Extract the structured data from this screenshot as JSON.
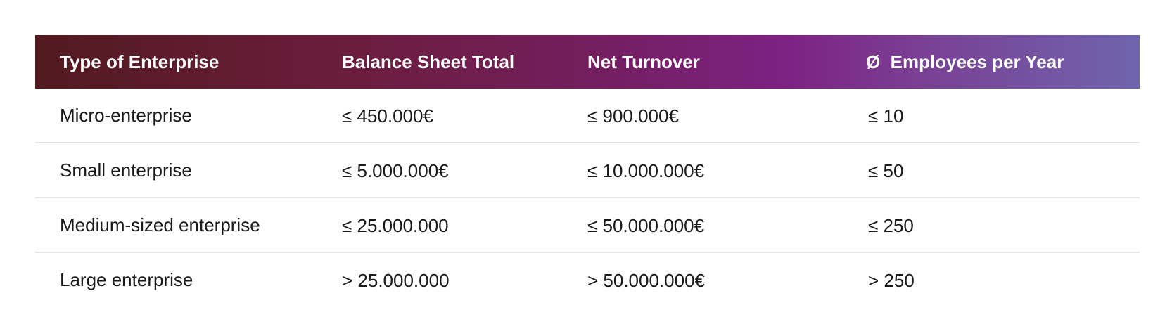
{
  "table": {
    "headers": [
      "Type of Enterprise",
      "Balance Sheet Total",
      "Net Turnover",
      "Ø  Employees per Year"
    ],
    "rows": [
      [
        "Micro-enterprise",
        "≤ 450.000€",
        "≤ 900.000€",
        "≤ 10"
      ],
      [
        "Small enterprise",
        "≤ 5.000.000€",
        "≤ 10.000.000€",
        "≤ 50"
      ],
      [
        "Medium-sized enterprise",
        "≤ 25.000.000",
        "≤ 50.000.000€",
        "≤ 250"
      ],
      [
        "Large enterprise",
        "> 25.000.000",
        "> 50.000.000€",
        "> 250"
      ]
    ]
  },
  "colors": {
    "header_gradient_start": "#521a1f",
    "header_gradient_mid": "#7d2183",
    "header_gradient_end": "#6f64ad",
    "header_text": "#ffffff",
    "row_divider": "#e6e6e6"
  }
}
